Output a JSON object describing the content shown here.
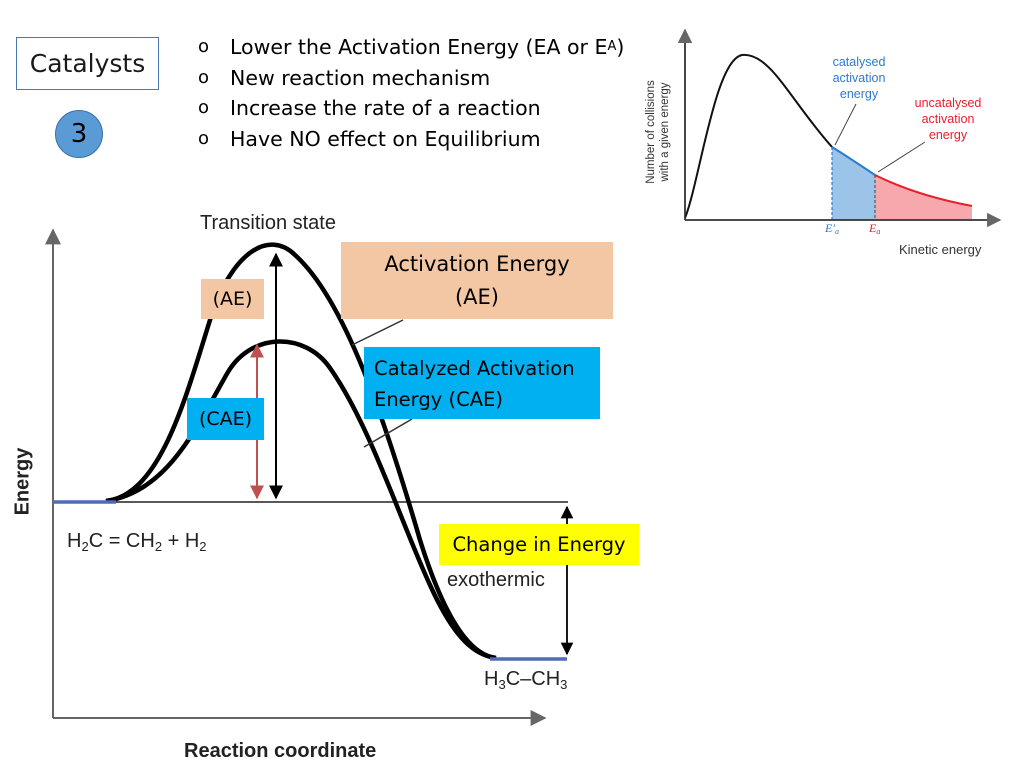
{
  "slide": {
    "title": "Catalysts",
    "number": "3"
  },
  "bullets": [
    {
      "marker": "o",
      "text": "Lower the Activation Energy (EA or E",
      "sub": "A",
      "tail": ")"
    },
    {
      "marker": "o",
      "text": "New reaction mechanism",
      "sub": "",
      "tail": ""
    },
    {
      "marker": "o",
      "text": "Increase the rate of a reaction",
      "sub": "",
      "tail": ""
    },
    {
      "marker": "o",
      "text": "Have NO effect on Equilibrium",
      "sub": "",
      "tail": ""
    }
  ],
  "callouts": {
    "ae_big_line1": "Activation Energy",
    "ae_big_line2": "(AE)",
    "ae_small": "(AE)",
    "cae_big": "Catalyzed Activation Energy (CAE)",
    "cae_small": "(CAE)",
    "change": "Change in Energy"
  },
  "energy_diagram": {
    "transition_label": "Transition state",
    "y_axis_label": "Energy",
    "x_axis_label": "Reaction coordinate",
    "exothermic_label": "exothermic",
    "reactant": {
      "a": "H",
      "a_sub": "2",
      "b": "C = CH",
      "b_sub": "2",
      "c": " + H",
      "c_sub": "2"
    },
    "product": {
      "a": "H",
      "a_sub": "3",
      "b": "C–CH",
      "b_sub": "3"
    },
    "colors": {
      "curve": "#000000",
      "baseline": "#4f6bb8",
      "cae_arrow": "#c0504d"
    }
  },
  "distribution_chart": {
    "y_axis_label_line1": "Number of collisions",
    "y_axis_label_line2": "with a given energy",
    "x_axis_label": "Kinetic energy",
    "catalysed_label": [
      "catalysed",
      "activation",
      "energy"
    ],
    "uncatalysed_label": [
      "uncatalysed",
      "activation",
      "energy"
    ],
    "ea_prime_label": "E′",
    "ea_prime_sub": "a",
    "ea_label": "E",
    "ea_sub": "a",
    "colors": {
      "catalysed": "#2b7bd0",
      "catalysed_fill": "#9cc3e8",
      "uncatalysed": "#e8202a",
      "uncatalysed_fill": "#f7a8ad"
    }
  }
}
